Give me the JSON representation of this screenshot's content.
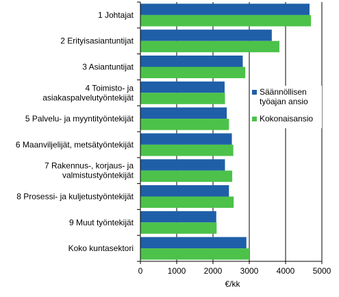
{
  "chart_data": {
    "type": "bar",
    "orientation": "horizontal",
    "categories": [
      [
        "1 Johtajat"
      ],
      [
        "2 Erityisasiantuntijat"
      ],
      [
        "3 Asiantuntijat"
      ],
      [
        "4 Toimisto- ja",
        "asiakaspalvelutyöntekijät"
      ],
      [
        "5 Palvelu- ja myyntityöntekijät"
      ],
      [
        "6 Maanviljelijät, metsätyöntekijät"
      ],
      [
        "7 Rakennus-, korjaus- ja",
        "valmistustyöntekijät"
      ],
      [
        "8 Prosessi- ja kuljetustyöntekijät"
      ],
      [
        "9 Muut työntekijät"
      ],
      [
        "Koko kuntasektori"
      ]
    ],
    "series": [
      {
        "name_lines": [
          "Säännöllisen",
          "työajan ansio"
        ],
        "color": "#1f5fa8",
        "values": [
          4660,
          3620,
          2820,
          2320,
          2380,
          2520,
          2330,
          2440,
          2090,
          2920
        ]
      },
      {
        "name_lines": [
          "Kokonaisansio"
        ],
        "color": "#4cc24a",
        "values": [
          4700,
          3830,
          2890,
          2330,
          2440,
          2560,
          2530,
          2570,
          2100,
          3000
        ]
      }
    ],
    "xlabel": "€/kk",
    "xlim": [
      0,
      5000
    ],
    "xticks": [
      "0",
      "1000",
      "2000",
      "3000",
      "4000",
      "5000"
    ],
    "grid": "vertical",
    "legend_position": "right"
  }
}
